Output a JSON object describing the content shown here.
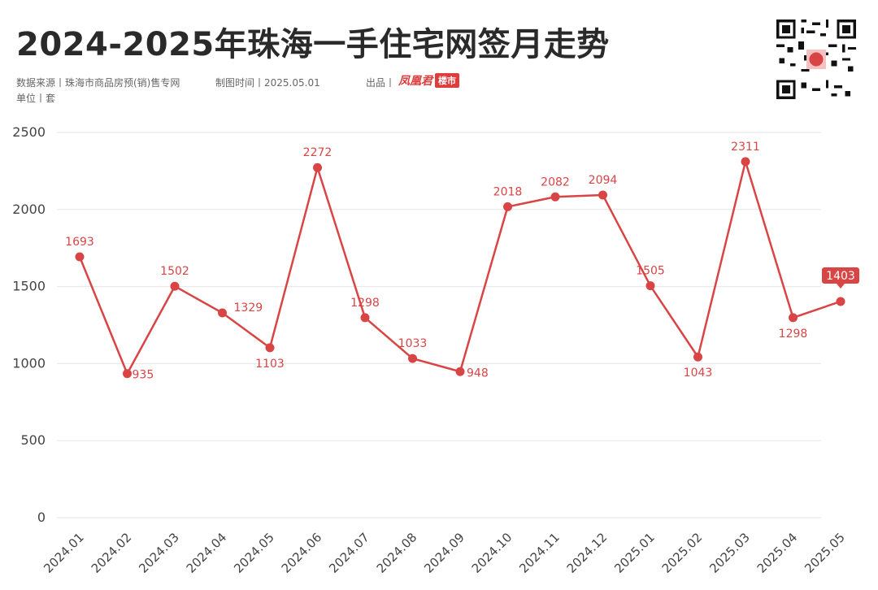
{
  "header": {
    "title": "2024-2025年珠海一手住宅网签月走势",
    "source": "数据来源丨珠海市商品房预(销)售专网",
    "date": "制图时间丨2025.05.01",
    "producer_label": "出品丨",
    "brand_name": "凤凰君",
    "brand_sub": "楼市",
    "unit": "单位丨套"
  },
  "chart_data": {
    "type": "line",
    "x": [
      "2024.01",
      "2024.02",
      "2024.03",
      "2024.04",
      "2024.05",
      "2024.06",
      "2024.07",
      "2024.08",
      "2024.09",
      "2024.10",
      "2024.11",
      "2024.12",
      "2025.01",
      "2025.02",
      "2025.03",
      "2025.04",
      "2025.05"
    ],
    "series": [
      {
        "values": [
          1693,
          935,
          1502,
          1329,
          1103,
          2272,
          1298,
          1033,
          948,
          2018,
          2082,
          2094,
          1505,
          1043,
          2311,
          1298,
          1403
        ],
        "color": "#d94545"
      }
    ],
    "y_ticks": [
      "0",
      "500",
      "1000",
      "1500",
      "2000",
      "2500"
    ],
    "ylim": [
      0,
      2500
    ],
    "grid": true,
    "highlight_last": true
  }
}
